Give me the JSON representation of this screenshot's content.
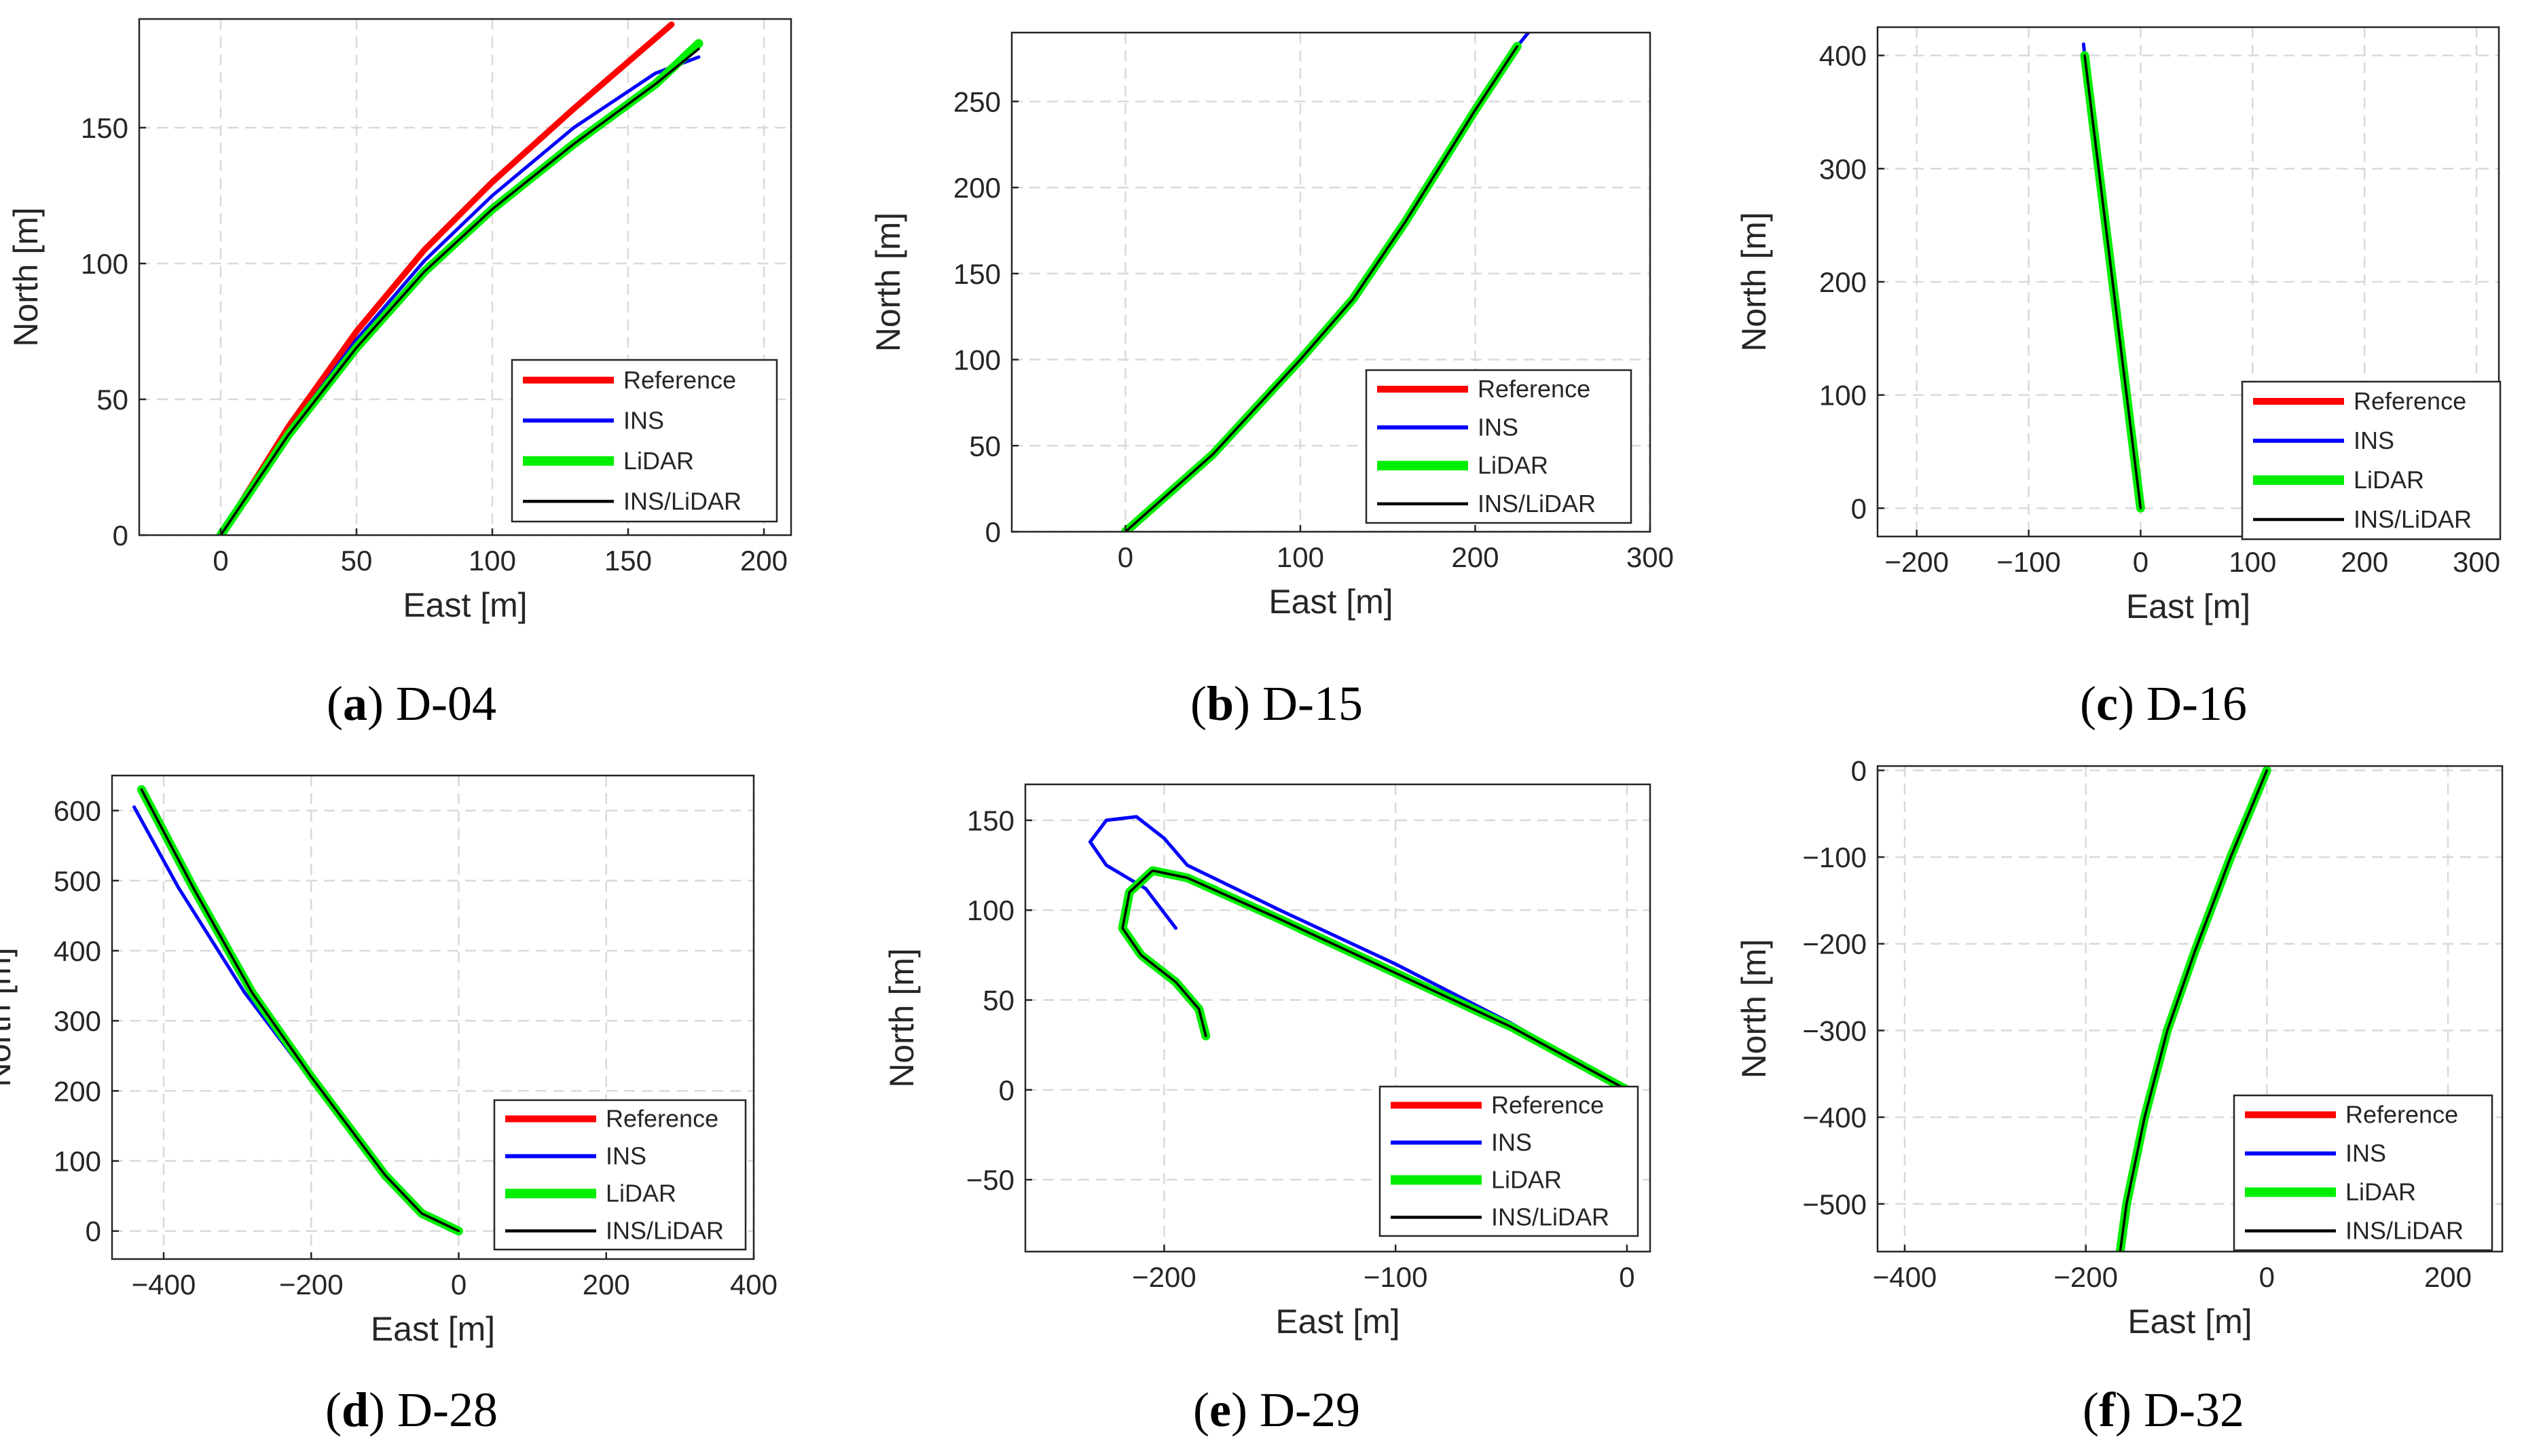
{
  "figure": {
    "subplots": [
      {
        "letter": "a",
        "caption": " D-04"
      },
      {
        "letter": "b",
        "caption": " D-15"
      },
      {
        "letter": "c",
        "caption": " D-16"
      },
      {
        "letter": "d",
        "caption": " D-28"
      },
      {
        "letter": "e",
        "caption": " D-29"
      },
      {
        "letter": "f",
        "caption": " D-32"
      }
    ]
  },
  "colors": {
    "reference": "#ff0000",
    "ins": "#0000ff",
    "lidar": "#00ee00",
    "ins_lidar": "#000000",
    "grid": "#d9d9d9",
    "axes": "#262626"
  },
  "chart_data": [
    {
      "type": "line",
      "id": "D-04",
      "xlabel": "East [m]",
      "ylabel": "North [m]",
      "xlim": [
        -30,
        210
      ],
      "ylim": [
        0,
        190
      ],
      "xticks": [
        0,
        50,
        100,
        150,
        200
      ],
      "yticks": [
        0,
        50,
        100,
        150
      ],
      "legend": [
        "Reference",
        "INS",
        "LiDAR",
        "INS/LiDAR"
      ],
      "series": [
        {
          "name": "Reference",
          "points": [
            [
              0,
              0
            ],
            [
              25,
              40
            ],
            [
              50,
              75
            ],
            [
              75,
              105
            ],
            [
              100,
              130
            ],
            [
              130,
              157
            ],
            [
              166,
              188
            ]
          ]
        },
        {
          "name": "INS",
          "points": [
            [
              0,
              0
            ],
            [
              25,
              38
            ],
            [
              50,
              72
            ],
            [
              75,
              101
            ],
            [
              100,
              125
            ],
            [
              130,
              150
            ],
            [
              160,
              170
            ],
            [
              176,
              176
            ]
          ]
        },
        {
          "name": "LiDAR",
          "points": [
            [
              0,
              0
            ],
            [
              25,
              37
            ],
            [
              50,
              69
            ],
            [
              75,
              97
            ],
            [
              100,
              120
            ],
            [
              130,
              144
            ],
            [
              160,
              166
            ],
            [
              176,
              181
            ]
          ]
        },
        {
          "name": "INS/LiDAR",
          "points": [
            [
              0,
              0
            ],
            [
              25,
              37
            ],
            [
              50,
              69
            ],
            [
              75,
              97
            ],
            [
              100,
              120
            ],
            [
              130,
              144
            ],
            [
              160,
              166
            ],
            [
              176,
              179
            ]
          ]
        }
      ]
    },
    {
      "type": "line",
      "id": "D-15",
      "xlabel": "East [m]",
      "ylabel": "North [m]",
      "xlim": [
        -65,
        300
      ],
      "ylim": [
        0,
        290
      ],
      "xticks": [
        0,
        100,
        200,
        300
      ],
      "yticks": [
        0,
        50,
        100,
        150,
        200,
        250
      ],
      "legend": [
        "Reference",
        "INS",
        "LiDAR",
        "INS/LiDAR"
      ],
      "series": [
        {
          "name": "Reference",
          "points": [
            [
              0,
              0
            ],
            [
              50,
              45
            ],
            [
              100,
              100
            ],
            [
              130,
              135
            ],
            [
              160,
              180
            ],
            [
              200,
              245
            ],
            [
              224,
              282
            ]
          ]
        },
        {
          "name": "INS",
          "points": [
            [
              0,
              0
            ],
            [
              50,
              45
            ],
            [
              100,
              100
            ],
            [
              130,
              135
            ],
            [
              160,
              180
            ],
            [
              200,
              245
            ],
            [
              224,
              282
            ],
            [
              232,
              292
            ]
          ]
        },
        {
          "name": "LiDAR",
          "points": [
            [
              0,
              0
            ],
            [
              50,
              45
            ],
            [
              100,
              100
            ],
            [
              130,
              135
            ],
            [
              160,
              180
            ],
            [
              200,
              245
            ],
            [
              224,
              282
            ]
          ]
        },
        {
          "name": "INS/LiDAR",
          "points": [
            [
              0,
              0
            ],
            [
              50,
              45
            ],
            [
              100,
              100
            ],
            [
              130,
              135
            ],
            [
              160,
              180
            ],
            [
              200,
              245
            ],
            [
              224,
              282
            ]
          ]
        }
      ]
    },
    {
      "type": "line",
      "id": "D-16",
      "xlabel": "East [m]",
      "ylabel": "North [m]",
      "xlim": [
        -235,
        320
      ],
      "ylim": [
        -25,
        425
      ],
      "xticks": [
        -200,
        -100,
        0,
        100,
        200,
        300
      ],
      "yticks": [
        0,
        100,
        200,
        300,
        400
      ],
      "legend": [
        "Reference",
        "INS",
        "LiDAR",
        "INS/LiDAR"
      ],
      "series": [
        {
          "name": "Reference",
          "points": [
            [
              0,
              0
            ],
            [
              -25,
              200
            ],
            [
              -50,
              400
            ]
          ]
        },
        {
          "name": "INS",
          "points": [
            [
              0,
              0
            ],
            [
              -25,
              200
            ],
            [
              -48,
              380
            ],
            [
              -51,
              410
            ]
          ]
        },
        {
          "name": "LiDAR",
          "points": [
            [
              0,
              0
            ],
            [
              -25,
              200
            ],
            [
              -50,
              400
            ]
          ]
        },
        {
          "name": "INS/LiDAR",
          "points": [
            [
              0,
              0
            ],
            [
              -25,
              200
            ],
            [
              -50,
              400
            ]
          ]
        }
      ]
    },
    {
      "type": "line",
      "id": "D-28",
      "xlabel": "East [m]",
      "ylabel": "North [m]",
      "xlim": [
        -470,
        400
      ],
      "ylim": [
        -40,
        650
      ],
      "xticks": [
        -400,
        -200,
        0,
        200,
        400
      ],
      "yticks": [
        0,
        100,
        200,
        300,
        400,
        500,
        600
      ],
      "legend": [
        "Reference",
        "INS",
        "LiDAR",
        "INS/LiDAR"
      ],
      "series": [
        {
          "name": "Reference",
          "points": [
            [
              0,
              0
            ],
            [
              -50,
              25
            ],
            [
              -100,
              80
            ],
            [
              -200,
              220
            ],
            [
              -280,
              340
            ],
            [
              -360,
              490
            ],
            [
              -430,
              630
            ]
          ]
        },
        {
          "name": "INS",
          "points": [
            [
              0,
              0
            ],
            [
              -50,
              25
            ],
            [
              -100,
              80
            ],
            [
              -200,
              215
            ],
            [
              -290,
              340
            ],
            [
              -380,
              490
            ],
            [
              -440,
              605
            ]
          ]
        },
        {
          "name": "LiDAR",
          "points": [
            [
              0,
              0
            ],
            [
              -50,
              25
            ],
            [
              -100,
              80
            ],
            [
              -200,
              220
            ],
            [
              -280,
              340
            ],
            [
              -360,
              490
            ],
            [
              -430,
              630
            ]
          ]
        },
        {
          "name": "INS/LiDAR",
          "points": [
            [
              0,
              0
            ],
            [
              -50,
              25
            ],
            [
              -100,
              80
            ],
            [
              -200,
              220
            ],
            [
              -280,
              340
            ],
            [
              -360,
              490
            ],
            [
              -430,
              630
            ]
          ]
        }
      ]
    },
    {
      "type": "line",
      "id": "D-29",
      "xlabel": "East [m]",
      "ylabel": "North [m]",
      "xlim": [
        -260,
        10
      ],
      "ylim": [
        -90,
        170
      ],
      "xticks": [
        -200,
        -100,
        0
      ],
      "yticks": [
        -50,
        0,
        50,
        100,
        150
      ],
      "legend": [
        "Reference",
        "INS",
        "LiDAR",
        "INS/LiDAR"
      ],
      "series": [
        {
          "name": "Reference",
          "points": [
            [
              0,
              0
            ],
            [
              -50,
              35
            ],
            [
              -100,
              65
            ],
            [
              -150,
              95
            ],
            [
              -190,
              118
            ],
            [
              -205,
              122
            ],
            [
              -215,
              110
            ],
            [
              -218,
              90
            ],
            [
              -210,
              75
            ],
            [
              -195,
              60
            ],
            [
              -185,
              45
            ],
            [
              -182,
              30
            ]
          ]
        },
        {
          "name": "INS",
          "points": [
            [
              0,
              0
            ],
            [
              -50,
              37
            ],
            [
              -100,
              70
            ],
            [
              -150,
              100
            ],
            [
              -190,
              125
            ],
            [
              -200,
              140
            ],
            [
              -212,
              152
            ],
            [
              -225,
              150
            ],
            [
              -232,
              138
            ],
            [
              -225,
              125
            ],
            [
              -208,
              112
            ],
            [
              -195,
              90
            ]
          ]
        },
        {
          "name": "LiDAR",
          "points": [
            [
              0,
              0
            ],
            [
              -50,
              35
            ],
            [
              -100,
              65
            ],
            [
              -150,
              95
            ],
            [
              -190,
              118
            ],
            [
              -205,
              122
            ],
            [
              -215,
              110
            ],
            [
              -218,
              90
            ],
            [
              -210,
              75
            ],
            [
              -195,
              60
            ],
            [
              -185,
              45
            ],
            [
              -182,
              30
            ]
          ]
        },
        {
          "name": "INS/LiDAR",
          "points": [
            [
              0,
              0
            ],
            [
              -50,
              35
            ],
            [
              -100,
              65
            ],
            [
              -150,
              95
            ],
            [
              -190,
              118
            ],
            [
              -205,
              122
            ],
            [
              -215,
              110
            ],
            [
              -218,
              90
            ],
            [
              -210,
              75
            ],
            [
              -195,
              60
            ],
            [
              -185,
              45
            ],
            [
              -182,
              30
            ]
          ]
        }
      ]
    },
    {
      "type": "line",
      "id": "D-32",
      "xlabel": "East [m]",
      "ylabel": "North [m]",
      "xlim": [
        -430,
        260
      ],
      "ylim": [
        -555,
        5
      ],
      "xticks": [
        -400,
        -200,
        0,
        200
      ],
      "yticks": [
        0,
        -100,
        -200,
        -300,
        -400,
        -500
      ],
      "legend": [
        "Reference",
        "INS",
        "LiDAR",
        "INS/LiDAR"
      ],
      "series": [
        {
          "name": "Reference",
          "points": [
            [
              0,
              0
            ],
            [
              -40,
              -100
            ],
            [
              -80,
              -210
            ],
            [
              -110,
              -300
            ],
            [
              -135,
              -400
            ],
            [
              -155,
              -500
            ],
            [
              -162,
              -555
            ]
          ]
        },
        {
          "name": "INS",
          "points": [
            [
              0,
              0
            ],
            [
              -40,
              -100
            ],
            [
              -80,
              -210
            ],
            [
              -110,
              -300
            ],
            [
              -135,
              -400
            ],
            [
              -155,
              -500
            ],
            [
              -160,
              -555
            ]
          ]
        },
        {
          "name": "LiDAR",
          "points": [
            [
              0,
              0
            ],
            [
              -40,
              -100
            ],
            [
              -80,
              -210
            ],
            [
              -110,
              -300
            ],
            [
              -135,
              -400
            ],
            [
              -155,
              -500
            ],
            [
              -162,
              -555
            ]
          ]
        },
        {
          "name": "INS/LiDAR",
          "points": [
            [
              0,
              0
            ],
            [
              -40,
              -100
            ],
            [
              -80,
              -210
            ],
            [
              -110,
              -300
            ],
            [
              -135,
              -400
            ],
            [
              -155,
              -500
            ],
            [
              -162,
              -555
            ]
          ]
        }
      ]
    }
  ]
}
